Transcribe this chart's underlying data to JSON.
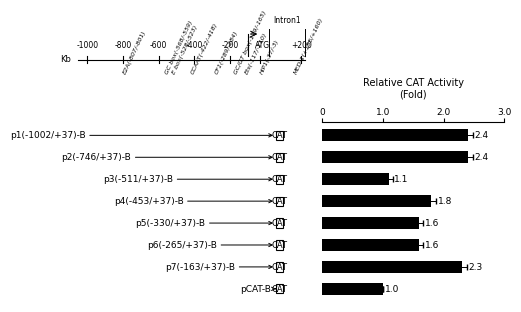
{
  "title_line1": "Relative CAT Activity",
  "title_line2": "(Fold)",
  "bar_labels": [
    "p1(-1002/+37)-B",
    "p2(-746/+37)-B",
    "p3(-511/+37)-B",
    "p4(-453/+37)-B",
    "p5(-330/+37)-B",
    "p6(-265/+37)-B",
    "p7(-163/+37)-B",
    "pCAT-B"
  ],
  "bar_values": [
    2.4,
    2.4,
    1.1,
    1.8,
    1.6,
    1.6,
    2.3,
    1.0
  ],
  "bar_errors": [
    0.08,
    0.08,
    0.06,
    0.07,
    0.06,
    0.06,
    0.08,
    0.0
  ],
  "bar_color": "#000000",
  "xlim": [
    0,
    3.0
  ],
  "xticks": [
    0,
    1.0,
    2.0,
    3.0
  ],
  "xticklabels": [
    "0",
    "1.0",
    "2.0",
    "3.0"
  ],
  "kb_label": "Kb",
  "intron1_label": "Intron1",
  "atg_label": "ATG",
  "ruler_positions": [
    -1000,
    -800,
    -600,
    -400,
    -200,
    200
  ],
  "ruler_labels": [
    "-1000",
    "-800",
    "-600",
    "-400",
    "-200",
    "+200"
  ],
  "element_labels": [
    "E2A(-807/-801)",
    "GC box(-568/-559)",
    "E box(-528/-523)",
    "CCAAT(-422/-418)",
    "CF1(-289/-284)",
    "GC/GT box(-179/-165)",
    "Ets(-117/-110)",
    "HIP1(-37/-3)",
    "MED-1(+155/+160)"
  ],
  "element_positions": [
    -807,
    -568,
    -528,
    -422,
    -289,
    -179,
    -117,
    -37,
    155
  ],
  "line_starts": [
    -1002,
    -746,
    -511,
    -453,
    -330,
    -265,
    -163,
    37
  ],
  "background_color": "#ffffff"
}
